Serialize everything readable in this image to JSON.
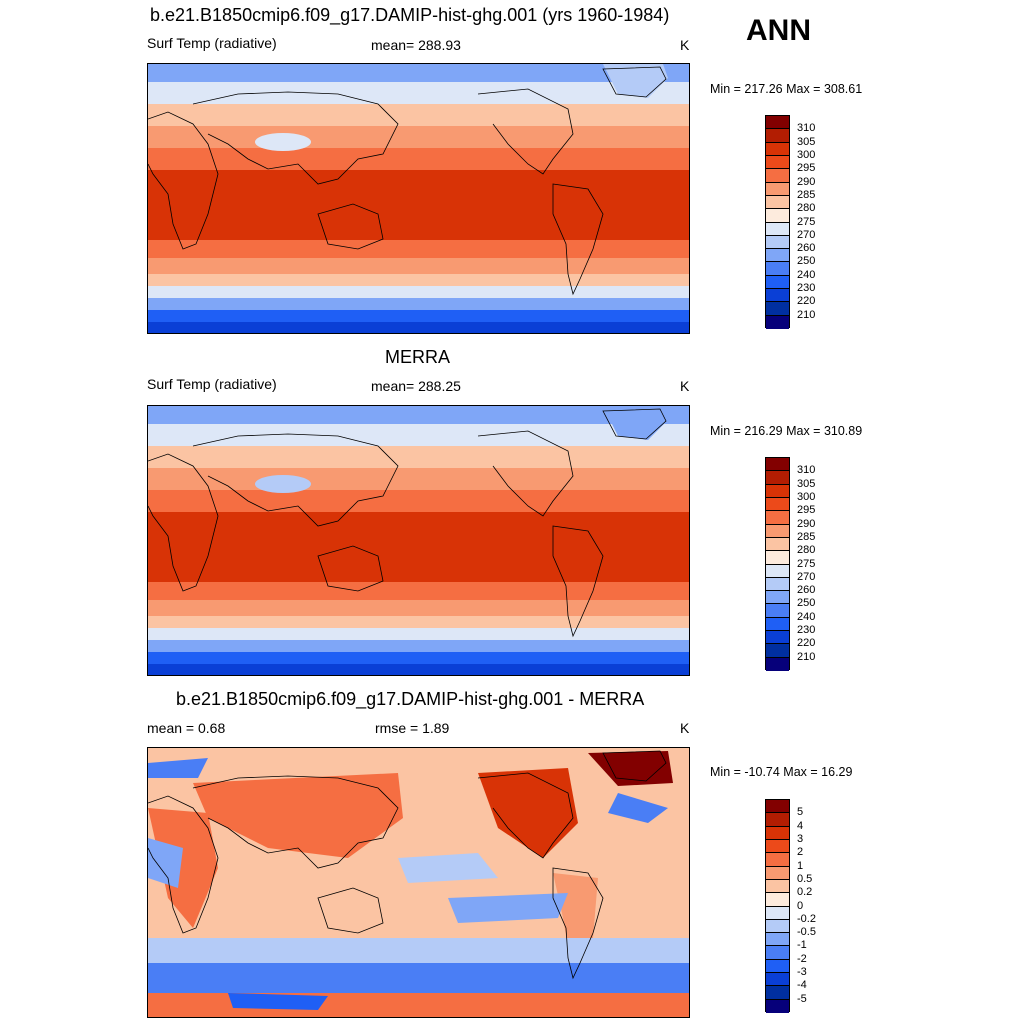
{
  "season": "ANN",
  "colors": {
    "temp_scale": [
      "#06007a",
      "#002fa0",
      "#0a3fd6",
      "#1f5ff5",
      "#4a7ef5",
      "#7fa6f7",
      "#b4cbf7",
      "#dde7f7",
      "#fdebdd",
      "#fbc4a3",
      "#f89a71",
      "#f56e42",
      "#ec4a1a",
      "#d83306",
      "#b21d02",
      "#820000"
    ],
    "diff_scale": [
      "#06007a",
      "#002fa0",
      "#0a3fd6",
      "#1f5ff5",
      "#4a7ef5",
      "#7fa6f7",
      "#b4cbf7",
      "#dde7f7",
      "#fdebdd",
      "#fbc4a3",
      "#f89a71",
      "#f56e42",
      "#ec4a1a",
      "#d83306",
      "#b21d02",
      "#820000"
    ]
  },
  "panels": [
    {
      "title": "b.e21.B1850cmip6.f09_g17.DAMIP-hist-ghg.001 (yrs 1960-1984)",
      "left_label": "Surf Temp (radiative)",
      "center_label": "mean= 288.93",
      "units": "K",
      "minmax": "Min = 217.26 Max = 308.61",
      "colorbar_labels": [
        "310",
        "305",
        "300",
        "295",
        "290",
        "285",
        "280",
        "275",
        "270",
        "260",
        "250",
        "240",
        "230",
        "220",
        "210"
      ]
    },
    {
      "title": "MERRA",
      "left_label": "Surf Temp (radiative)",
      "center_label": "mean= 288.25",
      "units": "K",
      "minmax": "Min = 216.29 Max = 310.89",
      "colorbar_labels": [
        "310",
        "305",
        "300",
        "295",
        "290",
        "285",
        "280",
        "275",
        "270",
        "260",
        "250",
        "240",
        "230",
        "220",
        "210"
      ]
    },
    {
      "title": "b.e21.B1850cmip6.f09_g17.DAMIP-hist-ghg.001 - MERRA",
      "left_label": "mean =   0.68",
      "center_label": "rmse =   1.89",
      "units": "K",
      "minmax": "Min = -10.74 Max =  16.29",
      "colorbar_labels": [
        "5",
        "4",
        "3",
        "2",
        "1",
        "0.5",
        "0.2",
        "0",
        "-0.2",
        "-0.5",
        "-1",
        "-2",
        "-3",
        "-4",
        "-5"
      ]
    }
  ]
}
